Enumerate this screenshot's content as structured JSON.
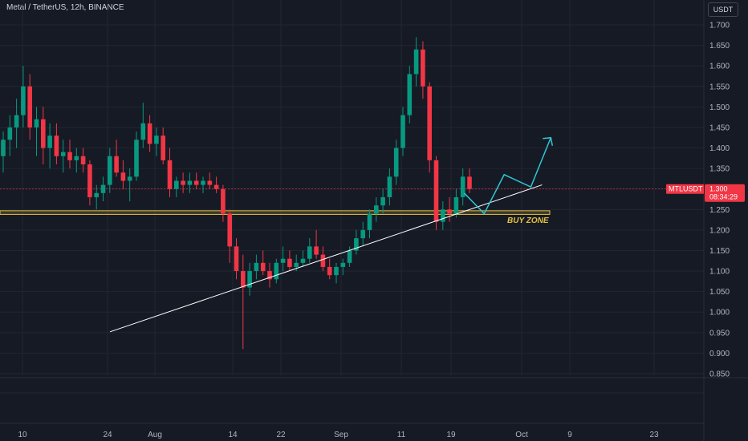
{
  "header": {
    "title": "Metal / TetherUS, 12h, BINANCE",
    "currency": "USDT"
  },
  "chart_data": {
    "type": "candlestick",
    "symbol": "MTLUSDT",
    "ylim": [
      0.85,
      1.72
    ],
    "y_ticks": [
      "1.700",
      "1.650",
      "1.600",
      "1.550",
      "1.500",
      "1.450",
      "1.400",
      "1.350",
      "1.300",
      "1.250",
      "1.200",
      "1.150",
      "1.100",
      "1.050",
      "1.000",
      "0.950",
      "0.900",
      "0.850"
    ],
    "x_ticks": [
      "10",
      "24",
      "Aug",
      "14",
      "22",
      "Sep",
      "11",
      "19",
      "Oct",
      "9",
      "23"
    ],
    "last_price": "1.300",
    "countdown": "08:34:29",
    "annotations": {
      "buy_zone_label": "BUY ZONE",
      "buy_zone_range": [
        1.24,
        1.245
      ],
      "trendline": [
        [
          0.952,
          17
        ],
        [
          1.31,
          78
        ]
      ],
      "projection": [
        [
          1.29,
          68
        ],
        [
          1.24,
          71
        ],
        [
          1.335,
          74
        ],
        [
          1.305,
          78
        ],
        [
          1.425,
          81
        ]
      ]
    },
    "candles": [
      [
        1.38,
        1.44,
        1.34,
        1.42
      ],
      [
        1.42,
        1.48,
        1.38,
        1.45
      ],
      [
        1.45,
        1.52,
        1.4,
        1.48
      ],
      [
        1.48,
        1.6,
        1.45,
        1.55
      ],
      [
        1.55,
        1.58,
        1.42,
        1.45
      ],
      [
        1.45,
        1.5,
        1.38,
        1.47
      ],
      [
        1.47,
        1.5,
        1.36,
        1.4
      ],
      [
        1.4,
        1.46,
        1.35,
        1.43
      ],
      [
        1.43,
        1.46,
        1.36,
        1.38
      ],
      [
        1.38,
        1.42,
        1.34,
        1.39
      ],
      [
        1.39,
        1.42,
        1.35,
        1.37
      ],
      [
        1.37,
        1.4,
        1.34,
        1.38
      ],
      [
        1.38,
        1.4,
        1.34,
        1.36
      ],
      [
        1.36,
        1.37,
        1.26,
        1.28
      ],
      [
        1.28,
        1.31,
        1.25,
        1.29
      ],
      [
        1.29,
        1.33,
        1.27,
        1.31
      ],
      [
        1.31,
        1.4,
        1.29,
        1.38
      ],
      [
        1.38,
        1.42,
        1.33,
        1.34
      ],
      [
        1.34,
        1.37,
        1.3,
        1.32
      ],
      [
        1.32,
        1.35,
        1.27,
        1.33
      ],
      [
        1.33,
        1.44,
        1.32,
        1.42
      ],
      [
        1.42,
        1.51,
        1.4,
        1.46
      ],
      [
        1.46,
        1.48,
        1.39,
        1.41
      ],
      [
        1.41,
        1.45,
        1.38,
        1.43
      ],
      [
        1.43,
        1.45,
        1.36,
        1.37
      ],
      [
        1.37,
        1.4,
        1.28,
        1.3
      ],
      [
        1.3,
        1.33,
        1.28,
        1.32
      ],
      [
        1.32,
        1.34,
        1.29,
        1.31
      ],
      [
        1.31,
        1.34,
        1.29,
        1.32
      ],
      [
        1.32,
        1.34,
        1.3,
        1.31
      ],
      [
        1.31,
        1.33,
        1.29,
        1.32
      ],
      [
        1.32,
        1.34,
        1.3,
        1.31
      ],
      [
        1.31,
        1.33,
        1.29,
        1.3
      ],
      [
        1.3,
        1.31,
        1.22,
        1.24
      ],
      [
        1.24,
        1.25,
        1.12,
        1.16
      ],
      [
        1.16,
        1.18,
        1.08,
        1.1
      ],
      [
        1.1,
        1.14,
        0.91,
        1.06
      ],
      [
        1.06,
        1.12,
        1.04,
        1.1
      ],
      [
        1.1,
        1.14,
        1.08,
        1.12
      ],
      [
        1.12,
        1.15,
        1.09,
        1.1
      ],
      [
        1.1,
        1.12,
        1.06,
        1.08
      ],
      [
        1.08,
        1.13,
        1.07,
        1.12
      ],
      [
        1.12,
        1.16,
        1.1,
        1.13
      ],
      [
        1.13,
        1.15,
        1.1,
        1.11
      ],
      [
        1.11,
        1.14,
        1.1,
        1.12
      ],
      [
        1.12,
        1.15,
        1.11,
        1.13
      ],
      [
        1.13,
        1.18,
        1.12,
        1.16
      ],
      [
        1.16,
        1.2,
        1.13,
        1.14
      ],
      [
        1.14,
        1.16,
        1.1,
        1.11
      ],
      [
        1.11,
        1.13,
        1.08,
        1.09
      ],
      [
        1.09,
        1.12,
        1.07,
        1.11
      ],
      [
        1.11,
        1.13,
        1.09,
        1.12
      ],
      [
        1.12,
        1.16,
        1.11,
        1.15
      ],
      [
        1.15,
        1.2,
        1.14,
        1.18
      ],
      [
        1.18,
        1.22,
        1.16,
        1.2
      ],
      [
        1.2,
        1.25,
        1.18,
        1.24
      ],
      [
        1.24,
        1.28,
        1.22,
        1.26
      ],
      [
        1.26,
        1.3,
        1.24,
        1.28
      ],
      [
        1.28,
        1.35,
        1.26,
        1.33
      ],
      [
        1.33,
        1.42,
        1.31,
        1.4
      ],
      [
        1.4,
        1.5,
        1.38,
        1.48
      ],
      [
        1.48,
        1.6,
        1.46,
        1.58
      ],
      [
        1.58,
        1.67,
        1.55,
        1.64
      ],
      [
        1.64,
        1.66,
        1.52,
        1.55
      ],
      [
        1.55,
        1.56,
        1.34,
        1.37
      ],
      [
        1.37,
        1.38,
        1.2,
        1.22
      ],
      [
        1.22,
        1.27,
        1.2,
        1.25
      ],
      [
        1.25,
        1.28,
        1.22,
        1.24
      ],
      [
        1.24,
        1.3,
        1.23,
        1.28
      ],
      [
        1.28,
        1.35,
        1.26,
        1.33
      ],
      [
        1.33,
        1.35,
        1.29,
        1.3
      ]
    ]
  }
}
